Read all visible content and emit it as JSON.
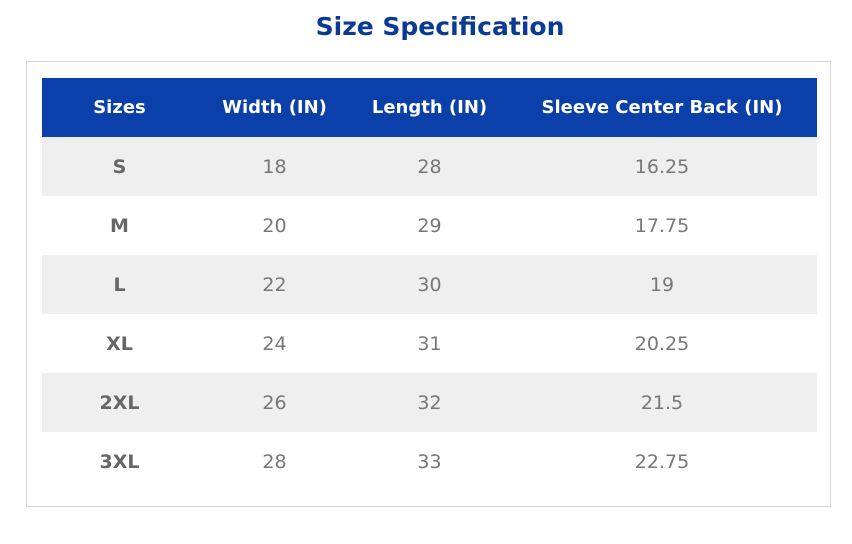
{
  "header": {
    "title": "Size Specification"
  },
  "table": {
    "columns": [
      "Sizes",
      "Width (IN)",
      "Length (IN)",
      "Sleeve Center Back (IN)"
    ],
    "rows": [
      [
        "S",
        "18",
        "28",
        "16.25"
      ],
      [
        "M",
        "20",
        "29",
        "17.75"
      ],
      [
        "L",
        "22",
        "30",
        "19"
      ],
      [
        "XL",
        "24",
        "31",
        "20.25"
      ],
      [
        "2XL",
        "26",
        "32",
        "21.5"
      ],
      [
        "3XL",
        "28",
        "33",
        "22.75"
      ]
    ]
  }
}
